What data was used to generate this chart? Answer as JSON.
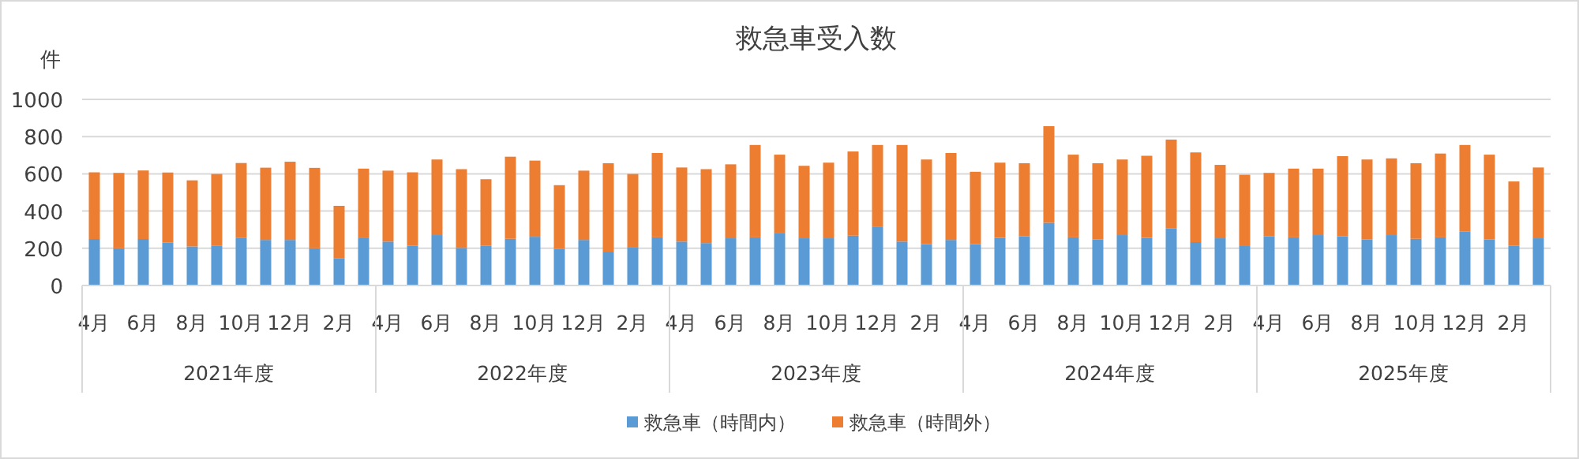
{
  "chart_data": {
    "type": "bar",
    "stacked": true,
    "title": "救急車受入数",
    "ylabel": "件",
    "categories": [
      "4月",
      null,
      "6月",
      null,
      "8月",
      null,
      "10月",
      null,
      "12月",
      null,
      "2月",
      null,
      "4月",
      null,
      "6月",
      null,
      "8月",
      null,
      "10月",
      null,
      "12月",
      null,
      "2月",
      null,
      "4月",
      null,
      "6月",
      null,
      "8月",
      null,
      "10月",
      null,
      "12月",
      null,
      "2月",
      null,
      "4月",
      null,
      "6月",
      null,
      "8月",
      null,
      "10月",
      null,
      "12月",
      null,
      "2月",
      null,
      "4月",
      null,
      "6月",
      null,
      "8月",
      null,
      "10月",
      null,
      "12月",
      null,
      "2月",
      null
    ],
    "annotations": [
      "2021年度",
      "2022年度",
      "2023年度",
      "2024年度",
      "2025年度"
    ],
    "ylim": [
      0,
      1000
    ],
    "yticks": [
      0,
      200,
      400,
      600,
      800,
      1000
    ],
    "grid": "y",
    "legend": "bottom",
    "series": [
      {
        "name": "救急車（時間内）",
        "color": "#5b9bd5",
        "values": [
          250,
          200,
          250,
          230,
          210,
          215,
          255,
          245,
          245,
          200,
          145,
          258,
          236,
          213,
          271,
          202,
          213,
          251,
          262,
          196,
          245,
          182,
          207,
          259,
          236,
          228,
          254,
          259,
          280,
          254,
          254,
          268,
          317,
          236,
          222,
          245,
          222,
          256,
          265,
          337,
          259,
          248,
          271,
          256,
          308,
          233,
          254,
          212,
          265,
          259,
          271,
          265,
          248,
          271,
          251,
          259,
          291,
          248,
          213,
          254
        ]
      },
      {
        "name": "救急車（時間外）",
        "color": "#ed7d31",
        "values": [
          358,
          405,
          368,
          377,
          355,
          384,
          403,
          388,
          420,
          432,
          283,
          370,
          381,
          395,
          406,
          423,
          358,
          441,
          409,
          343,
          372,
          475,
          392,
          453,
          398,
          397,
          397,
          496,
          423,
          389,
          406,
          452,
          438,
          519,
          455,
          467,
          389,
          404,
          392,
          519,
          444,
          409,
          406,
          441,
          476,
          482,
          394,
          383,
          340,
          369,
          357,
          430,
          429,
          412,
          406,
          450,
          464,
          455,
          346,
          380
        ]
      }
    ]
  }
}
